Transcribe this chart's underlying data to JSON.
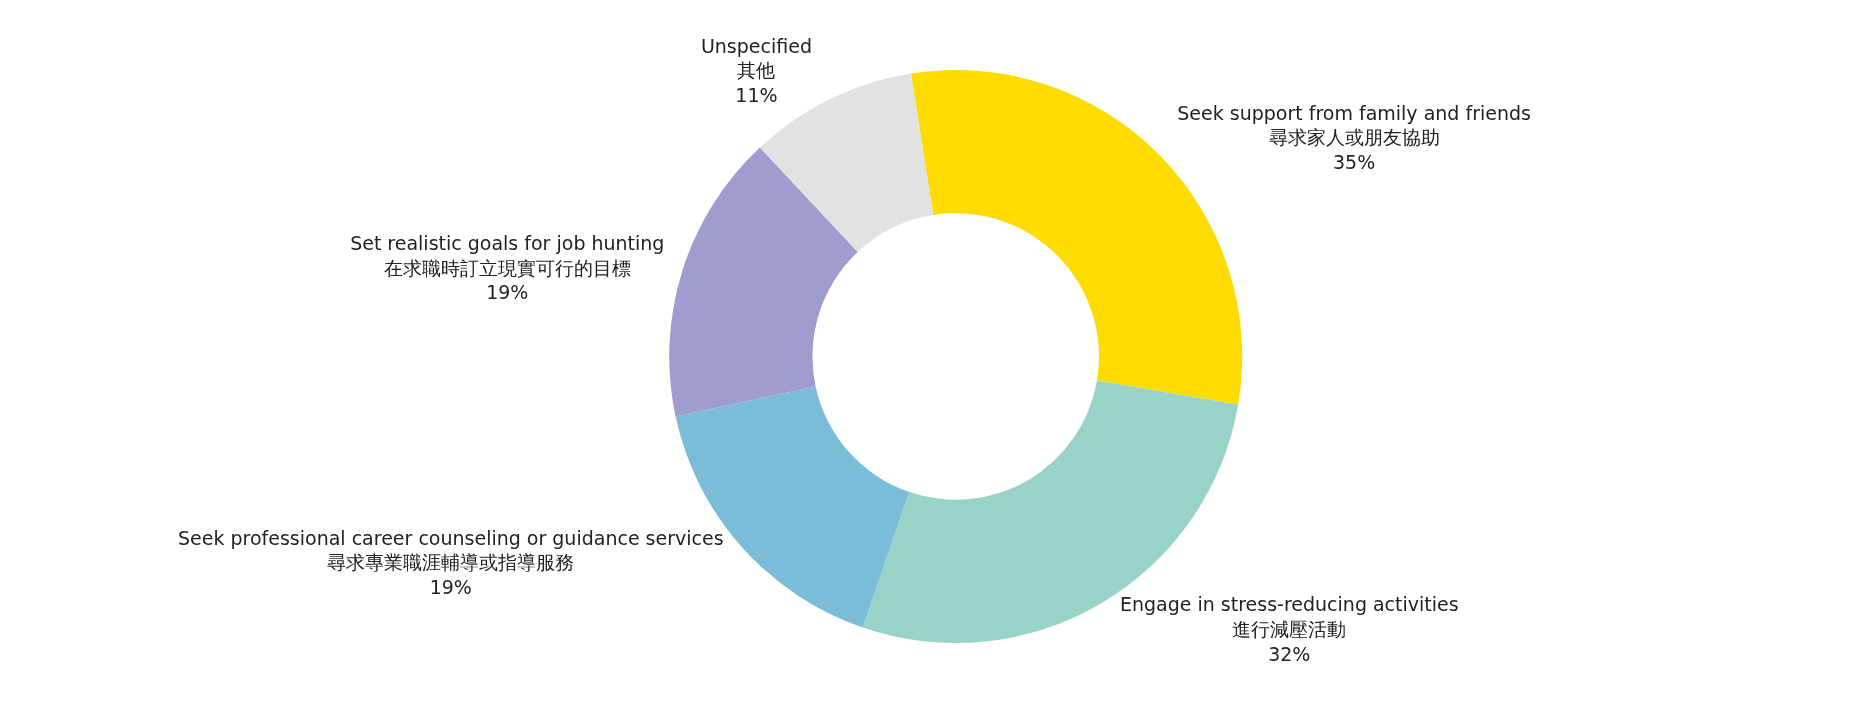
{
  "chart_data": {
    "type": "donut",
    "categories": [
      "Seek support from family and friends\n尋求家人或朋友協助",
      "Engage in stress-reducing activities\n進行減壓活動",
      "Seek professional career counseling or guidance services\n尋求專業職涯輔導或指導服務",
      "Set realistic goals for job hunting\n在求職時訂立現實可行的目標",
      "Unspecified\n其他"
    ],
    "values": [
      35,
      32,
      19,
      19,
      11
    ],
    "value_labels": [
      "35%",
      "32%",
      "19%",
      "19%",
      "11%"
    ],
    "colors": [
      "#fedc00",
      "#99d3c8",
      "#7bbdd9",
      "#9e9dcd",
      "#e1e3e2"
    ],
    "legend": false
  }
}
